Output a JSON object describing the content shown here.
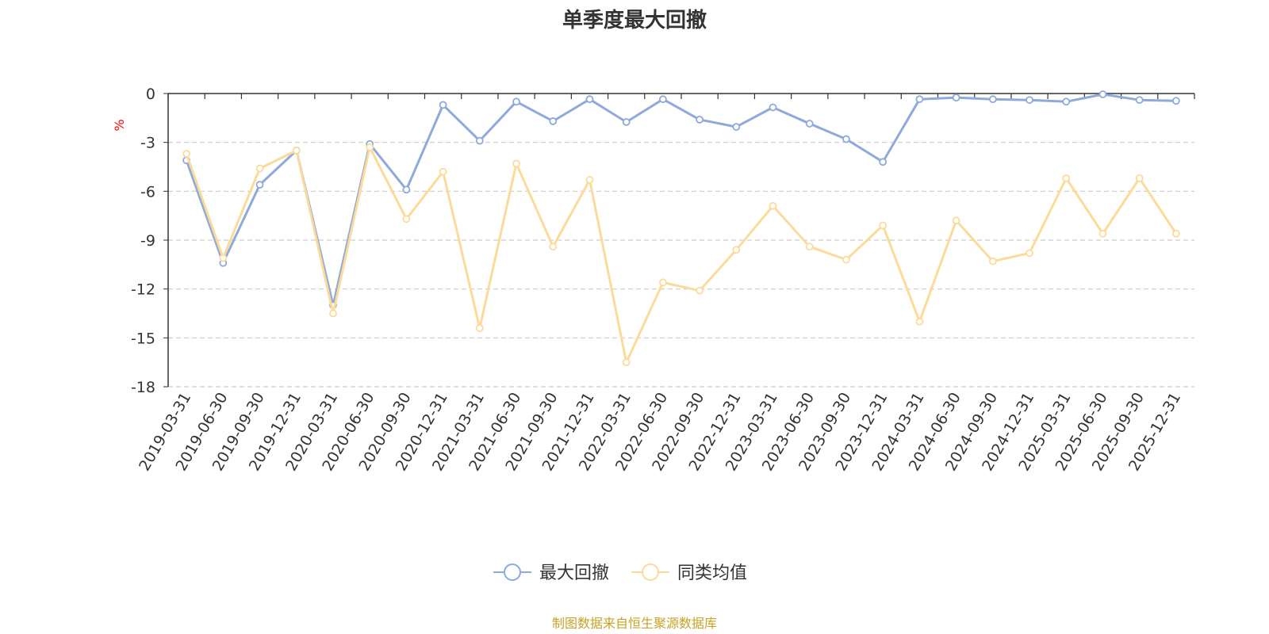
{
  "chart_data": {
    "type": "line",
    "title": "单季度最大回撤",
    "ylabel": "%",
    "ylim": [
      -18,
      0
    ],
    "yticks": [
      0,
      -3,
      -6,
      -9,
      -12,
      -15,
      -18
    ],
    "grid": true,
    "legend_position": "bottom",
    "x": [
      "2019-03-31",
      "2019-06-30",
      "2019-09-30",
      "2019-12-31",
      "2020-03-31",
      "2020-06-30",
      "2020-09-30",
      "2020-12-31",
      "2021-03-31",
      "2021-06-30",
      "2021-09-30",
      "2021-12-31",
      "2022-03-31",
      "2022-06-30",
      "2022-09-30",
      "2022-12-31",
      "2023-03-31",
      "2023-06-30",
      "2023-09-30",
      "2023-12-31",
      "2024-03-31",
      "2024-06-30",
      "2024-09-30",
      "2024-12-31",
      "2025-03-31",
      "2025-06-30",
      "2025-09-30",
      "2025-12-31"
    ],
    "series": [
      {
        "name": "最大回撤",
        "color": "#8eaadb",
        "values": [
          -4.1,
          -10.4,
          -5.6,
          -3.5,
          -13.0,
          -3.1,
          -5.9,
          -0.7,
          -2.9,
          -0.5,
          -1.7,
          -0.35,
          -1.75,
          -0.35,
          -1.6,
          -2.05,
          -0.85,
          -1.85,
          -2.8,
          -4.2,
          -0.35,
          -0.25,
          -0.35,
          -0.4,
          -0.5,
          -0.05,
          -0.4,
          -0.45
        ]
      },
      {
        "name": "同类均值",
        "color": "#fcdb9a",
        "values": [
          -3.7,
          -10.1,
          -4.6,
          -3.5,
          -13.5,
          -3.3,
          -7.7,
          -4.8,
          -14.4,
          -4.3,
          -9.4,
          -5.3,
          -16.5,
          -11.6,
          -12.1,
          -9.6,
          -6.9,
          -9.4,
          -10.2,
          -8.1,
          -14.0,
          -7.8,
          -10.3,
          -9.8,
          -5.2,
          -8.6,
          -5.2,
          -8.6
        ]
      }
    ]
  },
  "footer": {
    "source": "制图数据来自恒生聚源数据库"
  },
  "colors": {
    "axis": "#333333",
    "grid": "#cccccc",
    "ylabel": "#ff0000",
    "source": "#c9a227"
  }
}
